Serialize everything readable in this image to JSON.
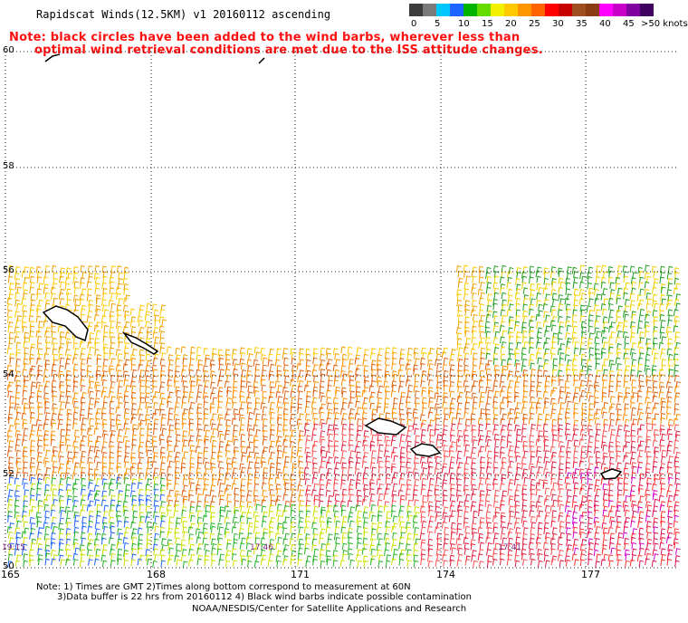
{
  "title": "Rapidscat Winds(12.5KM)  v1  20160112  ascending",
  "note_line1": "Note: black circles have been added to the wind barbs, wherever less than",
  "note_line2": "optimal wind retrieval conditions are met due to the ISS attitude changes.",
  "legend": {
    "unit": ">50 knots",
    "labels": [
      "0",
      "5",
      "10",
      "15",
      "20",
      "25",
      "30",
      "35",
      "40",
      "45"
    ],
    "colors": [
      "#3c3c3c",
      "#7a7a7a",
      "#00c8ff",
      "#1e64ff",
      "#00b400",
      "#64dc00",
      "#f0f000",
      "#ffc800",
      "#ff9600",
      "#ff6400",
      "#ff0000",
      "#c80000",
      "#a0501e",
      "#8c3c14",
      "#ff00ff",
      "#c800c8",
      "#8000a0",
      "#400060"
    ]
  },
  "latitudes": [
    "60",
    "58",
    "56",
    "54",
    "52",
    "50"
  ],
  "longitudes": [
    "165",
    "168",
    "171",
    "174",
    "177"
  ],
  "times": [
    "19:15",
    "17:46",
    "17:41"
  ],
  "footer_line1": "Note: 1) Times are GMT 2)Times along bottom correspond to measurement at 60N",
  "footer_line2": "3)Data buffer is 22 hrs from 20160112 4) Black wind barbs indicate possible contamination",
  "credit": "NOAA/NESDIS/Center for Satellite Applications and Research"
}
